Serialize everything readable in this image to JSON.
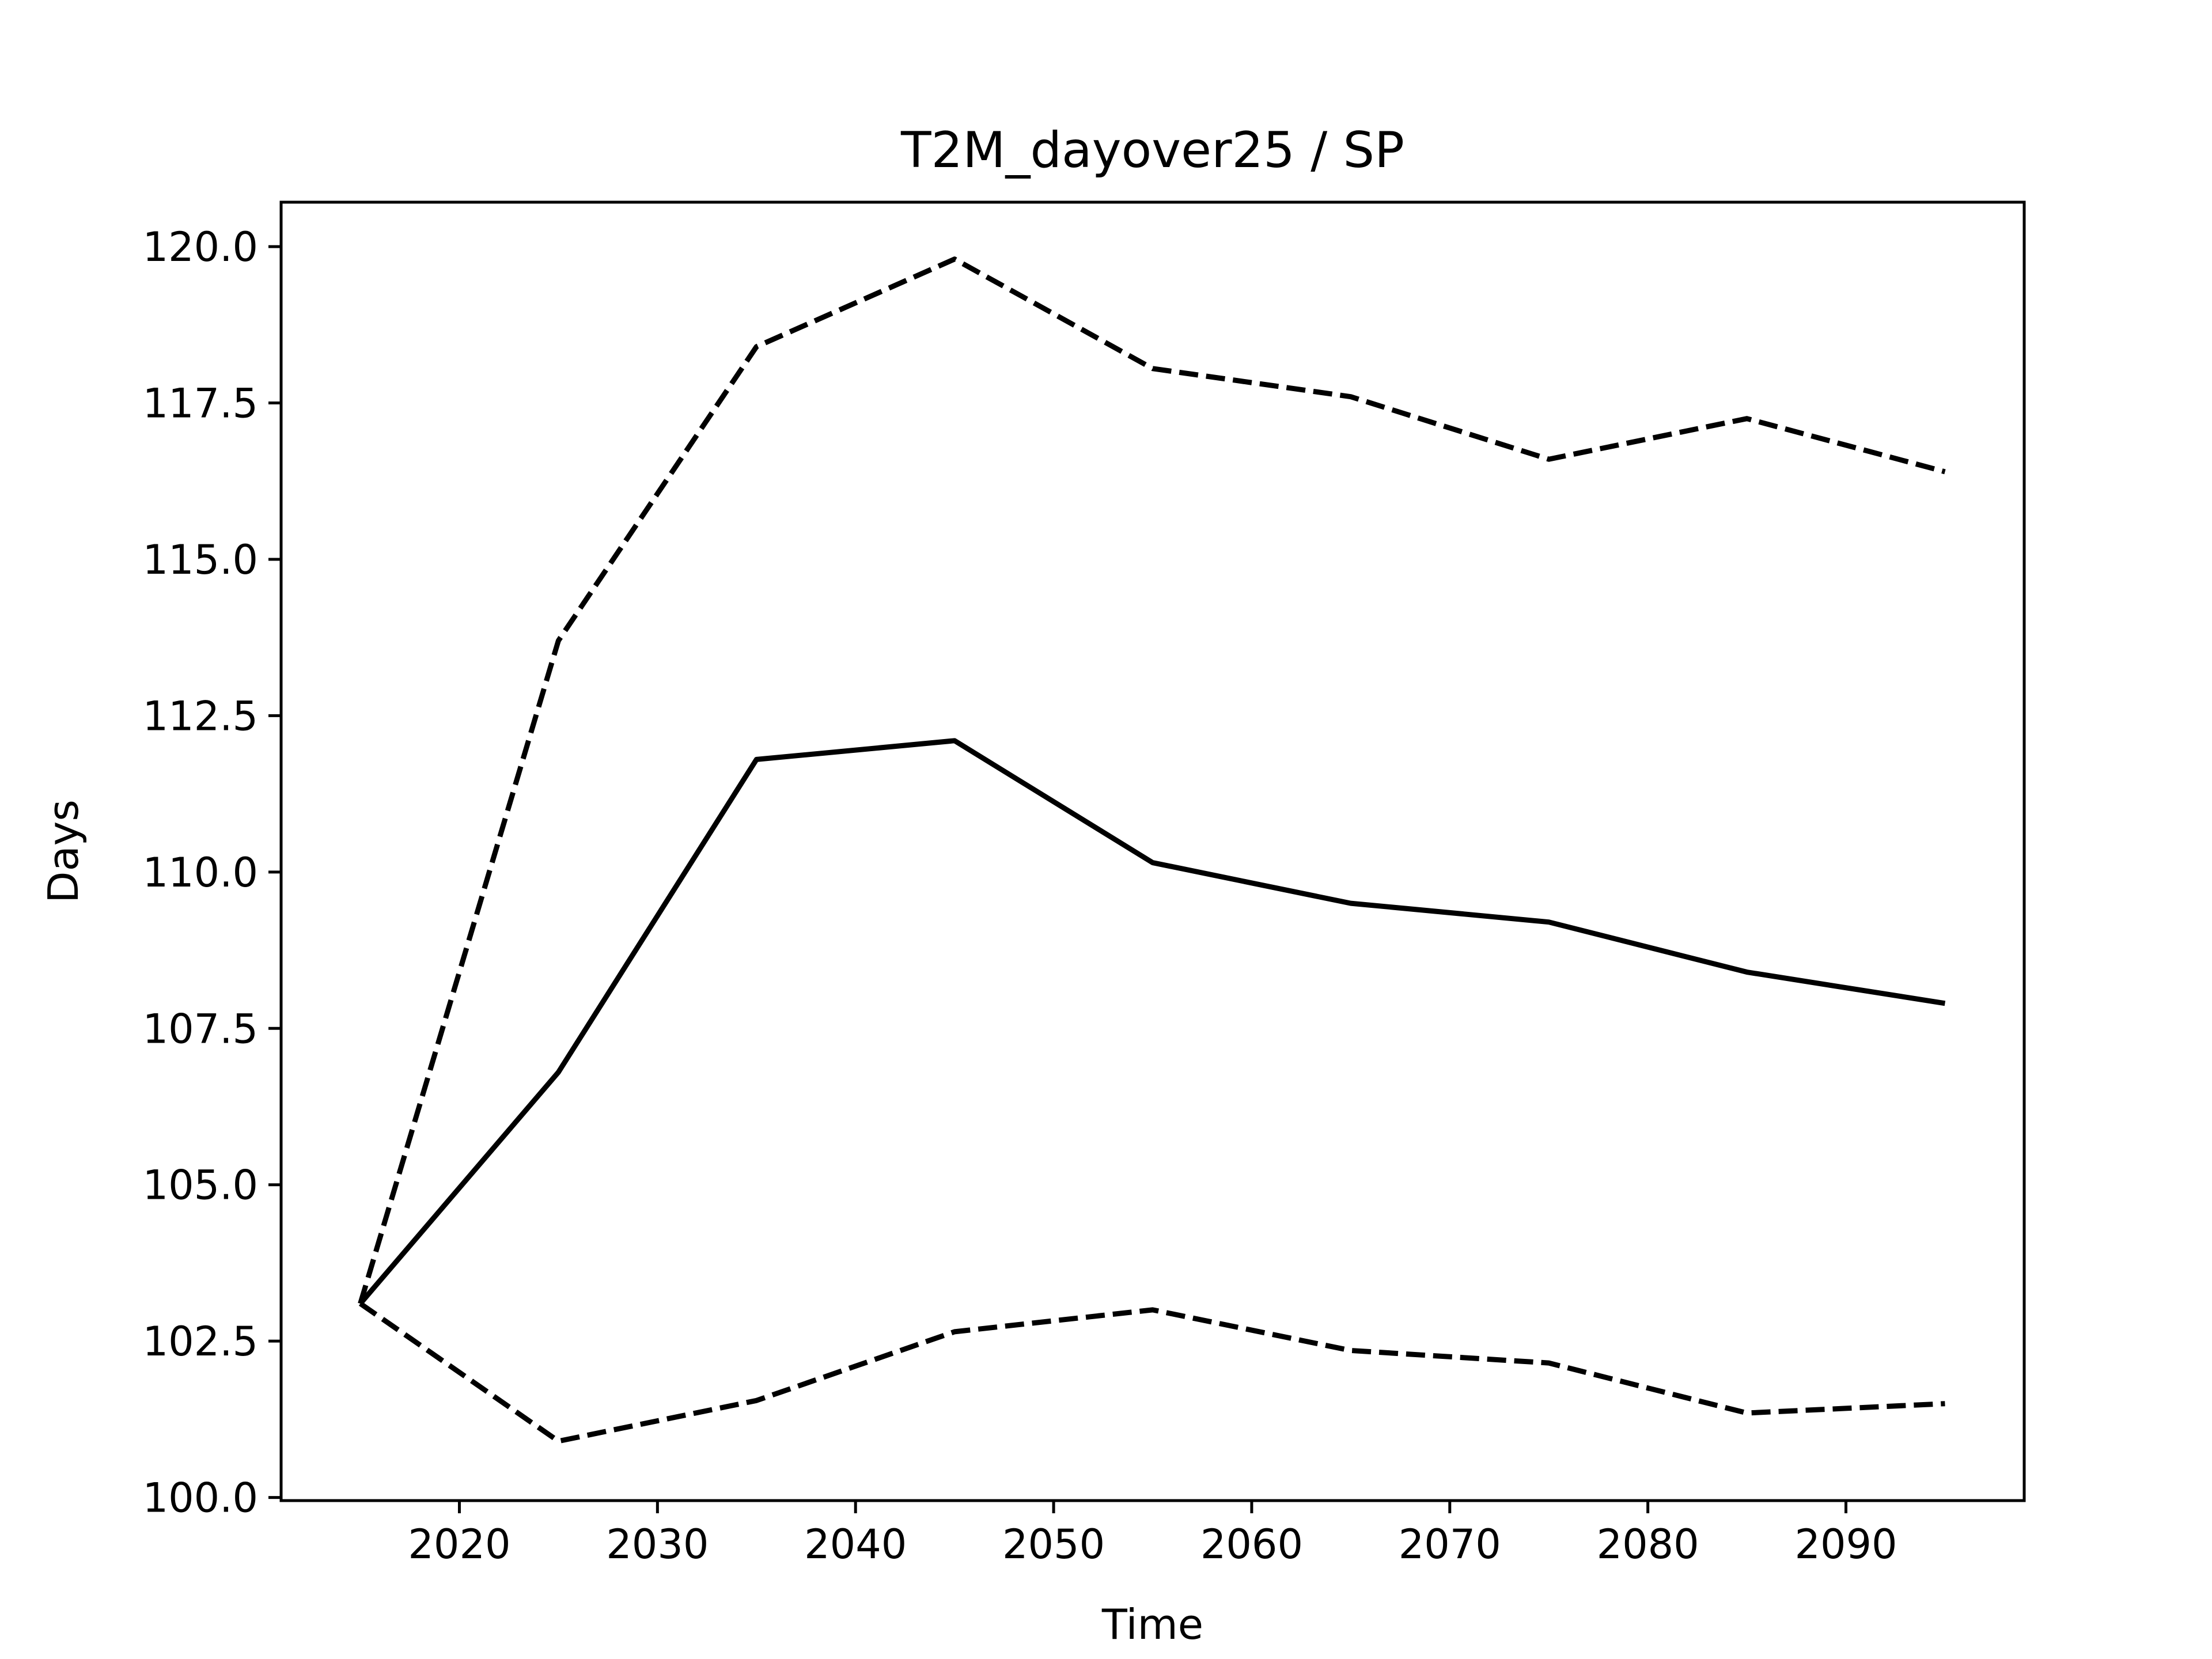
{
  "chart_data": {
    "type": "line",
    "title": "T2M_dayover25 / SP",
    "x_label": "Time",
    "y_label": "Days",
    "x": [
      2015,
      2025,
      2035,
      2045,
      2055,
      2065,
      2075,
      2085,
      2095
    ],
    "series": [
      {
        "color": "#000000",
        "dash": false,
        "values": [
          103.1,
          106.8,
          111.8,
          112.1,
          110.15,
          109.5,
          109.2,
          108.4,
          107.9
        ]
      },
      {
        "color": "#000000",
        "dash": true,
        "values": [
          103.1,
          113.7,
          118.4,
          119.8,
          118.05,
          117.6,
          116.6,
          117.25,
          116.4
        ]
      },
      {
        "color": "#000000",
        "dash": true,
        "values": [
          103.1,
          100.9,
          101.55,
          102.65,
          103.0,
          102.35,
          102.15,
          101.35,
          101.5
        ]
      }
    ],
    "xlim": [
      2011,
      2099
    ],
    "ylim": [
      99.95,
      120.71
    ],
    "xticks": [
      2020,
      2030,
      2040,
      2050,
      2060,
      2070,
      2080,
      2090
    ],
    "yticks": [
      {
        "value": 100,
        "label": "100.0"
      },
      {
        "value": 102.5,
        "label": "102.5"
      },
      {
        "value": 105,
        "label": "105.0"
      },
      {
        "value": 107.5,
        "label": "107.5"
      },
      {
        "value": 110,
        "label": "110.0"
      },
      {
        "value": 112.5,
        "label": "112.5"
      },
      {
        "value": 115,
        "label": "115.0"
      },
      {
        "value": 117.5,
        "label": "117.5"
      },
      {
        "value": 120,
        "label": "120.0"
      }
    ],
    "grid": false
  }
}
